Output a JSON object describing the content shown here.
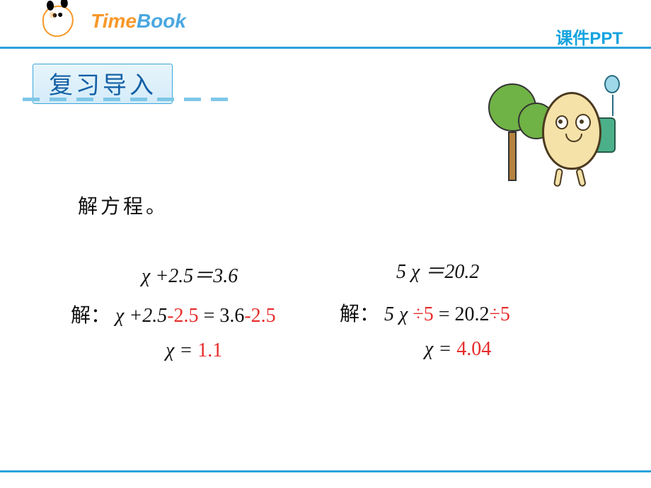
{
  "header": {
    "logo_time": "Time",
    "logo_book": "Book",
    "slide_label": "课件PPT"
  },
  "section": {
    "title": "复习导入"
  },
  "prompt": "解方程。",
  "colors": {
    "brand_orange": "#f79829",
    "brand_blue": "#4aa7e0",
    "rule_blue": "#2aa1dc",
    "label_blue": "#14a3df",
    "title_text": "#1360a6",
    "dash_blue": "#7ec7e8",
    "answer_red": "#e72b2b",
    "body_text": "#111111"
  },
  "equations": {
    "left": {
      "given": "χ +2.5＝3.6",
      "step_prefix": "解：",
      "step_lhs_a": "χ +2.5",
      "step_op": "-2.5",
      "eq": " = ",
      "step_rhs_a": "3.6",
      "step_rhs_op": "-2.5",
      "result_lhs": "χ  = ",
      "result_val": "1.1"
    },
    "right": {
      "given": "5 χ ＝20.2",
      "step_prefix": "解：",
      "step_lhs_a": "5 χ ",
      "step_op": "÷5",
      "eq": " = ",
      "step_rhs_a": "20.2",
      "step_rhs_op": "÷5",
      "result_lhs": "χ  = ",
      "result_val": "4.04"
    }
  },
  "typography": {
    "title_fontsize_pt": 26,
    "body_fontsize_pt": 21,
    "label_fontsize_pt": 18,
    "logo_fontsize_pt": 21
  }
}
